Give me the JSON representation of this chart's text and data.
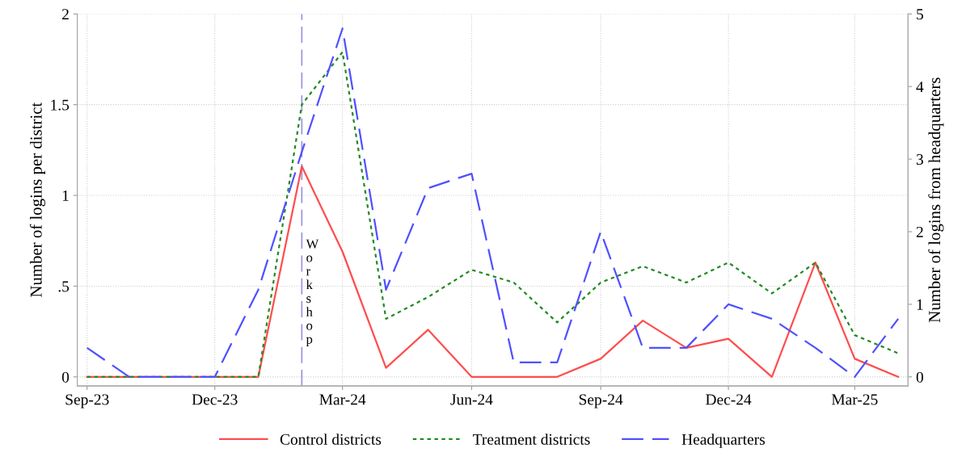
{
  "chart_data": {
    "type": "line",
    "ylabel": "Number of logins per district",
    "y2label": "Number of logins from headquarters",
    "x": [
      "2023-09",
      "2023-10",
      "2023-11",
      "2023-12",
      "2024-01",
      "2024-02",
      "2024-03",
      "2024-04",
      "2024-05",
      "2024-06",
      "2024-07",
      "2024-08",
      "2024-09",
      "2024-10",
      "2024-11",
      "2024-12",
      "2025-01",
      "2025-02",
      "2025-03",
      "2025-04"
    ],
    "series": [
      {
        "name": "Control districts",
        "color": "#ff4d4d",
        "line_style": "solid",
        "values": [
          0,
          0,
          0,
          0,
          0,
          1.16,
          0.69,
          0.05,
          0.26,
          0,
          0,
          0,
          0.1,
          0.31,
          0.16,
          0.21,
          0,
          0.63,
          0.1,
          0
        ]
      },
      {
        "name": "Treatment districts",
        "color": "#228b22",
        "line_style": "dotted",
        "values": [
          0,
          0,
          0,
          0,
          0,
          1.5,
          1.79,
          0.32,
          0.44,
          0.59,
          0.52,
          0.3,
          0.52,
          0.61,
          0.52,
          0.63,
          0.46,
          0.63,
          0.23,
          0.13
        ]
      },
      {
        "name": "Headquarters",
        "color": "#5050ff",
        "line_style": "dashed",
        "axis": "y2",
        "values": [
          0.4,
          0,
          0,
          0,
          1.2,
          3.1,
          4.8,
          1.2,
          2.6,
          2.8,
          0.2,
          0.2,
          2.0,
          0.4,
          0.4,
          1.0,
          0.8,
          0.4,
          0,
          0.8
        ]
      }
    ],
    "xlim": [
      "2023-08-25",
      "2025-04-08"
    ],
    "xticks": [
      {
        "value": "2023-09",
        "label": "Sep-23"
      },
      {
        "value": "2023-12",
        "label": "Dec-23"
      },
      {
        "value": "2024-03",
        "label": "Mar-24"
      },
      {
        "value": "2024-06",
        "label": "Jun-24"
      },
      {
        "value": "2024-09",
        "label": "Sep-24"
      },
      {
        "value": "2024-12",
        "label": "Dec-24"
      },
      {
        "value": "2025-03",
        "label": "Mar-25"
      }
    ],
    "ylim": [
      -0.05,
      2
    ],
    "yticks": [
      0,
      {
        "value": 0.5,
        "label": ".5"
      },
      1,
      1.5,
      2
    ],
    "y2lim": [
      -0.125,
      5
    ],
    "y2ticks": [
      0,
      1,
      2,
      3,
      4,
      5
    ],
    "ref_lines": [
      {
        "axis": "x",
        "value": "2024-02",
        "label": "Workshop",
        "color": "#9a8fe0",
        "line_style": "dashed"
      }
    ],
    "grid": true,
    "legend": "bottom"
  }
}
